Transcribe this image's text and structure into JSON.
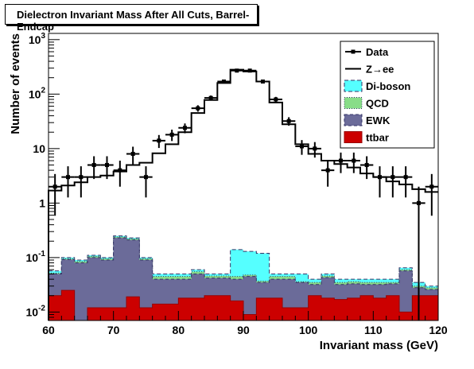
{
  "title": "Dielectron Invariant Mass After All Cuts, Barrel-Endcap",
  "chart_data": {
    "type": "histogram",
    "xlabel": "Invariant mass (GeV)",
    "ylabel": "Number of events",
    "xlim": [
      60,
      120
    ],
    "ylim": [
      0.007,
      1300
    ],
    "log_y": true,
    "bin_width": 2,
    "x_ticks": [
      "60",
      "70",
      "80",
      "90",
      "100",
      "110",
      "120"
    ],
    "y_ticks": [
      {
        "base": "10",
        "exp": "-2",
        "value": 0.01
      },
      {
        "base": "10",
        "exp": "-1",
        "value": 0.1
      },
      {
        "base": "1",
        "exp": "",
        "value": 1
      },
      {
        "base": "10",
        "exp": "",
        "value": 10
      },
      {
        "base": "10",
        "exp": "2",
        "value": 100
      },
      {
        "base": "10",
        "exp": "3",
        "value": 1000
      }
    ],
    "bins_low_edge": [
      60,
      62,
      64,
      66,
      68,
      70,
      72,
      74,
      76,
      78,
      80,
      82,
      84,
      86,
      88,
      90,
      92,
      94,
      96,
      98,
      100,
      102,
      104,
      106,
      108,
      110,
      112,
      114,
      116,
      118
    ],
    "series": [
      {
        "name": "Data",
        "style": "points",
        "color": "#000000",
        "values": [
          2.0,
          3.0,
          3.0,
          5.0,
          5.0,
          4.0,
          8.0,
          3.0,
          14.0,
          18.0,
          24.0,
          55.0,
          85.0,
          170.0,
          270.0,
          270.0,
          170.0,
          80.0,
          32.0,
          11.0,
          10.0,
          4.0,
          6.0,
          6.0,
          5.0,
          3.0,
          3.0,
          3.0,
          1.0,
          2.0
        ]
      },
      {
        "name": "Z→ee",
        "style": "line",
        "color": "#000000",
        "values": [
          1.7,
          2.1,
          2.4,
          3.0,
          3.2,
          3.8,
          5.0,
          5.5,
          8.2,
          12.0,
          20.0,
          45.0,
          78.0,
          160.0,
          280.0,
          260.0,
          170.0,
          70.0,
          28.0,
          12.0,
          8.0,
          6.0,
          5.2,
          4.5,
          3.5,
          3.0,
          2.5,
          2.2,
          1.8,
          1.6
        ]
      },
      {
        "name": "Di-boson",
        "style": "fill",
        "color": "#55ffff",
        "values": [
          0.057,
          0.1,
          0.09,
          0.11,
          0.1,
          0.25,
          0.23,
          0.1,
          0.05,
          0.05,
          0.05,
          0.06,
          0.05,
          0.05,
          0.14,
          0.13,
          0.12,
          0.05,
          0.05,
          0.05,
          0.04,
          0.05,
          0.04,
          0.04,
          0.04,
          0.04,
          0.04,
          0.065,
          0.035,
          0.03
        ]
      },
      {
        "name": "QCD",
        "style": "fill",
        "color": "#88dd88",
        "values": [
          0.052,
          0.095,
          0.085,
          0.105,
          0.095,
          0.24,
          0.22,
          0.095,
          0.045,
          0.045,
          0.045,
          0.055,
          0.046,
          0.046,
          0.045,
          0.048,
          0.037,
          0.045,
          0.045,
          0.036,
          0.035,
          0.046,
          0.035,
          0.036,
          0.035,
          0.035,
          0.035,
          0.06,
          0.03,
          0.028
        ]
      },
      {
        "name": "EWK",
        "style": "fill",
        "color": "#6b6b99",
        "values": [
          0.05,
          0.092,
          0.08,
          0.1,
          0.09,
          0.23,
          0.21,
          0.09,
          0.04,
          0.04,
          0.04,
          0.05,
          0.042,
          0.042,
          0.04,
          0.045,
          0.035,
          0.04,
          0.04,
          0.035,
          0.032,
          0.043,
          0.032,
          0.033,
          0.032,
          0.032,
          0.033,
          0.057,
          0.028,
          0.026
        ]
      },
      {
        "name": "ttbar",
        "style": "fill",
        "color": "#cc0000",
        "values": [
          0.02,
          0.025,
          0.0,
          0.012,
          0.012,
          0.012,
          0.019,
          0.012,
          0.014,
          0.014,
          0.018,
          0.018,
          0.02,
          0.02,
          0.016,
          0.009,
          0.018,
          0.018,
          0.012,
          0.012,
          0.02,
          0.018,
          0.017,
          0.018,
          0.02,
          0.018,
          0.02,
          0.01,
          0.02,
          0.02
        ]
      }
    ],
    "legend_position": "top-right"
  }
}
